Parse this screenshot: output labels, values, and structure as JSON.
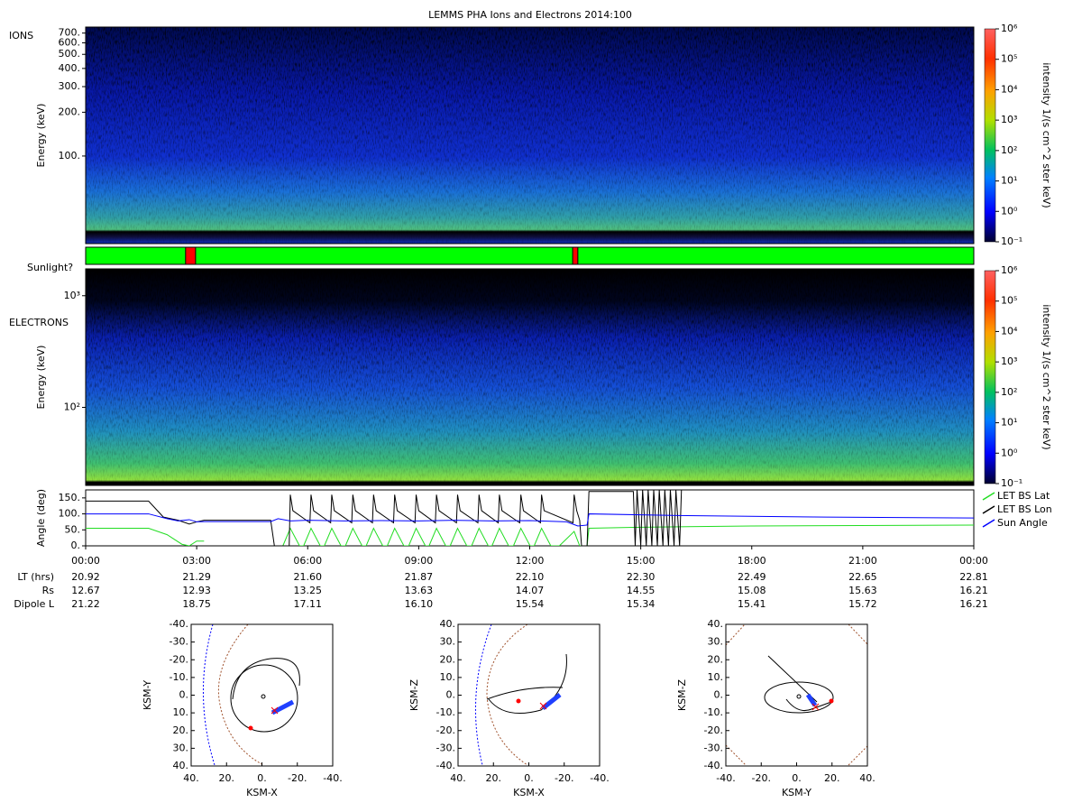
{
  "chart_data": [
    {
      "type": "spectrogram",
      "title": "LEMMS PHA Ions and Electrons  2014:100",
      "label": "IONS",
      "y_label": "Energy (keV)",
      "log_y": true,
      "ylim": [
        25,
        770
      ],
      "yticks": [
        {
          "value": 100,
          "label": "100."
        },
        {
          "value": 200,
          "label": "200."
        },
        {
          "value": 300,
          "label": "300."
        },
        {
          "value": 400,
          "label": "400."
        },
        {
          "value": 500,
          "label": "500."
        },
        {
          "value": 600,
          "label": "600."
        },
        {
          "value": 700,
          "label": "700."
        }
      ],
      "colorbar_label": "intensity 1/(s cm^2 ster keV)",
      "clim": [
        0.1,
        1000000
      ],
      "cticks": [
        {
          "value": 0.1,
          "label": "10⁻¹"
        },
        {
          "value": 1,
          "label": "10⁰"
        },
        {
          "value": 10,
          "label": "10¹"
        },
        {
          "value": 100,
          "label": "10²"
        },
        {
          "value": 1000,
          "label": "10³"
        },
        {
          "value": 10000,
          "label": "10⁴"
        },
        {
          "value": 100000,
          "label": "10⁵"
        },
        {
          "value": 1000000,
          "label": "10⁶"
        }
      ]
    },
    {
      "type": "timeline",
      "label": "Sunlight?",
      "xlim": [
        0,
        24
      ],
      "color": "#00ff00",
      "eclipse_color": "#ff0000",
      "eclipses": [
        {
          "start": 2.7,
          "end": 2.97
        },
        {
          "start": 13.16,
          "end": 13.3
        }
      ]
    },
    {
      "type": "spectrogram",
      "label": "ELECTRONS",
      "y_label": "Energy (keV)",
      "log_y": true,
      "ylim": [
        20,
        1740
      ],
      "yticks": [
        {
          "value": 100,
          "label": "10²"
        },
        {
          "value": 1000,
          "label": "10³"
        }
      ],
      "colorbar_label": "intensity 1/(s cm^2 ster keV)",
      "clim": [
        0.1,
        1000000
      ],
      "cticks": [
        {
          "value": 0.1,
          "label": "10⁻¹"
        },
        {
          "value": 1,
          "label": "10⁰"
        },
        {
          "value": 10,
          "label": "10¹"
        },
        {
          "value": 100,
          "label": "10²"
        },
        {
          "value": 1000,
          "label": "10³"
        },
        {
          "value": 10000,
          "label": "10⁴"
        },
        {
          "value": 100000,
          "label": "10⁵"
        },
        {
          "value": 1000000,
          "label": "10⁶"
        }
      ]
    },
    {
      "type": "line",
      "y_label": "Angle (deg)",
      "xlim": [
        0,
        24
      ],
      "ylim": [
        0,
        175
      ],
      "yticks": [
        {
          "value": 0,
          "label": "0."
        },
        {
          "value": 50,
          "label": "50."
        },
        {
          "value": 100,
          "label": "100."
        },
        {
          "value": 150,
          "label": "150."
        }
      ],
      "xticks": [
        {
          "value": 0,
          "label": "00:00"
        },
        {
          "value": 3,
          "label": "03:00"
        },
        {
          "value": 6,
          "label": "06:00"
        },
        {
          "value": 9,
          "label": "09:00"
        },
        {
          "value": 12,
          "label": "12:00"
        },
        {
          "value": 15,
          "label": "15:00"
        },
        {
          "value": 18,
          "label": "18:00"
        },
        {
          "value": 21,
          "label": "21:00"
        },
        {
          "value": 24,
          "label": "00:00"
        }
      ],
      "series": [
        {
          "name": "LET BS Lat",
          "color": "#22dd22",
          "x": [
            0,
            1.7,
            2.2,
            2.6,
            2.8,
            3.0,
            3.2,
            3.25,
            5.33,
            5.53,
            5.78,
            5.89,
            6.09,
            6.34,
            6.45,
            6.65,
            6.9,
            7.02,
            7.22,
            7.47,
            7.58,
            7.78,
            8.03,
            8.15,
            8.35,
            8.6,
            8.73,
            8.93,
            9.18,
            9.28,
            9.48,
            9.73,
            9.85,
            10.05,
            10.3,
            10.43,
            10.63,
            10.88,
            10.98,
            11.18,
            11.43,
            11.56,
            11.76,
            12.01,
            12.12,
            12.32,
            12.57,
            12.8,
            13.2,
            13.35,
            13.55,
            13.6,
            14.8,
            18,
            24
          ],
          "values": [
            55,
            55,
            35,
            5,
            0,
            15,
            15,
            null,
            0,
            55,
            0,
            0,
            55,
            0,
            0,
            55,
            0,
            0,
            55,
            0,
            0,
            55,
            0,
            0,
            55,
            0,
            0,
            55,
            0,
            0,
            55,
            0,
            0,
            55,
            0,
            0,
            55,
            0,
            0,
            55,
            0,
            0,
            55,
            0,
            0,
            55,
            0,
            0,
            45,
            0,
            0,
            55,
            58,
            62,
            65
          ]
        },
        {
          "name": "LET BS Lon",
          "color": "#000000",
          "x": [
            0,
            1.7,
            2.1,
            2.5,
            2.8,
            3.0,
            3.2,
            5.0,
            5.1,
            5.5,
            5.53,
            5.6,
            6.06,
            6.09,
            6.16,
            6.62,
            6.65,
            6.72,
            7.19,
            7.22,
            7.29,
            7.75,
            7.78,
            7.85,
            8.32,
            8.35,
            8.42,
            8.9,
            8.93,
            9.0,
            9.45,
            9.48,
            9.55,
            10.02,
            10.05,
            10.12,
            10.6,
            10.63,
            10.7,
            11.15,
            11.18,
            11.25,
            11.73,
            11.76,
            11.83,
            12.29,
            12.32,
            12.39,
            13.17,
            13.2,
            13.27,
            13.35,
            13.4,
            13.55,
            13.6,
            14.8,
            14.85,
            14.9,
            15.0,
            15.05,
            15.15,
            15.2,
            15.3,
            15.35,
            15.45,
            15.5,
            15.6,
            15.65,
            15.75,
            15.8,
            15.9,
            15.95,
            16.05,
            16.1,
            16.2,
            24
          ],
          "values": [
            140,
            140,
            90,
            80,
            68,
            75,
            80,
            80,
            0,
            0,
            160,
            110,
            72,
            160,
            110,
            72,
            160,
            110,
            72,
            160,
            110,
            72,
            160,
            110,
            72,
            160,
            110,
            72,
            160,
            110,
            72,
            160,
            110,
            72,
            160,
            110,
            72,
            160,
            110,
            72,
            160,
            110,
            72,
            160,
            110,
            72,
            160,
            110,
            72,
            160,
            110,
            80,
            0,
            0,
            170,
            170,
            0,
            175,
            0,
            175,
            0,
            175,
            0,
            175,
            0,
            175,
            0,
            175,
            0,
            175,
            0,
            175,
            0,
            175,
            180,
            180
          ]
        },
        {
          "name": "Sun Angle",
          "color": "#0000ff",
          "x": [
            0,
            1.7,
            2.2,
            2.5,
            2.8,
            3.0,
            3.2,
            5.0,
            5.2,
            5.53,
            6,
            7,
            8,
            9,
            10,
            11,
            12,
            13,
            13.3,
            13.55,
            13.6,
            16,
            20,
            24
          ],
          "values": [
            100,
            100,
            85,
            78,
            82,
            75,
            76,
            76,
            85,
            78,
            80,
            78,
            79,
            78,
            80,
            78,
            79,
            75,
            62,
            65,
            100,
            95,
            90,
            87
          ]
        }
      ]
    },
    {
      "type": "orbit",
      "x_label": "KSM-X",
      "y_label": "KSM-Y",
      "xlim": [
        40,
        -40
      ],
      "ylim": [
        40,
        -40
      ],
      "xticks": [
        {
          "value": 40,
          "label": "40."
        },
        {
          "value": 20,
          "label": "20."
        },
        {
          "value": 0,
          "label": "0."
        },
        {
          "value": -20,
          "label": "-20."
        },
        {
          "value": -40,
          "label": "-40."
        }
      ],
      "yticks": [
        {
          "value": -40,
          "label": "-40."
        },
        {
          "value": -30,
          "label": "-30."
        },
        {
          "value": -20,
          "label": "-20."
        },
        {
          "value": -10,
          "label": "-10."
        },
        {
          "value": 0,
          "label": "0."
        },
        {
          "value": 10,
          "label": "10."
        },
        {
          "value": 20,
          "label": "20."
        },
        {
          "value": 30,
          "label": "30."
        },
        {
          "value": 40,
          "label": "40."
        }
      ]
    },
    {
      "type": "orbit",
      "x_label": "KSM-X",
      "y_label": "KSM-Z",
      "xlim": [
        40,
        -40
      ],
      "ylim": [
        -40,
        40
      ],
      "xticks": [
        {
          "value": 40,
          "label": "40."
        },
        {
          "value": 20,
          "label": "20."
        },
        {
          "value": 0,
          "label": "0."
        },
        {
          "value": -20,
          "label": "-20."
        },
        {
          "value": -40,
          "label": "-40."
        }
      ],
      "yticks": [
        {
          "value": 40,
          "label": "40."
        },
        {
          "value": 30,
          "label": "30."
        },
        {
          "value": 20,
          "label": "20."
        },
        {
          "value": 10,
          "label": "10."
        },
        {
          "value": 0,
          "label": "0."
        },
        {
          "value": -10,
          "label": "-10."
        },
        {
          "value": -20,
          "label": "-20."
        },
        {
          "value": -30,
          "label": "-30."
        },
        {
          "value": -40,
          "label": "-40."
        }
      ]
    },
    {
      "type": "orbit",
      "x_label": "KSM-Y",
      "y_label": "KSM-Z",
      "xlim": [
        -40,
        40
      ],
      "ylim": [
        -40,
        40
      ],
      "xticks": [
        {
          "value": -40,
          "label": "-40."
        },
        {
          "value": -20,
          "label": "-20."
        },
        {
          "value": 0,
          "label": "0."
        },
        {
          "value": 20,
          "label": "20."
        },
        {
          "value": 40,
          "label": "40."
        }
      ],
      "yticks": [
        {
          "value": 40,
          "label": "40."
        },
        {
          "value": 30,
          "label": "30."
        },
        {
          "value": 20,
          "label": "20."
        },
        {
          "value": 10,
          "label": "10."
        },
        {
          "value": 0,
          "label": "0."
        },
        {
          "value": -10,
          "label": "-10."
        },
        {
          "value": -20,
          "label": "-20."
        },
        {
          "value": -30,
          "label": "-30."
        },
        {
          "value": -40,
          "label": "-40."
        }
      ]
    }
  ],
  "ephemeris": {
    "rows": [
      {
        "label": "LT (hrs)",
        "values": [
          "20.92",
          "21.29",
          "21.60",
          "21.87",
          "22.10",
          "22.30",
          "22.49",
          "22.65",
          "22.81"
        ]
      },
      {
        "label": "Rs",
        "values": [
          "12.67",
          "12.93",
          "13.25",
          "13.63",
          "14.07",
          "14.55",
          "15.08",
          "15.63",
          "16.21"
        ]
      },
      {
        "label": "Dipole L",
        "values": [
          "21.22",
          "18.75",
          "17.11",
          "16.10",
          "15.54",
          "15.34",
          "15.41",
          "15.72",
          "16.21"
        ]
      }
    ]
  }
}
